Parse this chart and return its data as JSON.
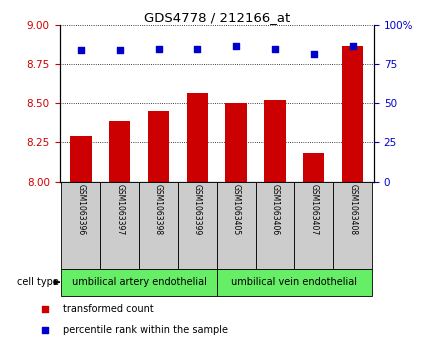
{
  "title": "GDS4778 / 212166_at",
  "samples": [
    "GSM1063396",
    "GSM1063397",
    "GSM1063398",
    "GSM1063399",
    "GSM1063405",
    "GSM1063406",
    "GSM1063407",
    "GSM1063408"
  ],
  "bar_values": [
    8.29,
    8.39,
    8.45,
    8.57,
    8.5,
    8.52,
    8.18,
    8.87
  ],
  "dot_values": [
    84,
    84,
    85,
    85,
    87,
    85,
    82,
    87
  ],
  "ylim_left": [
    8.0,
    9.0
  ],
  "yticks_left": [
    8.0,
    8.25,
    8.5,
    8.75,
    9.0
  ],
  "ylim_right": [
    0,
    100
  ],
  "yticks_right": [
    0,
    25,
    50,
    75,
    100
  ],
  "yticklabels_right": [
    "0",
    "25",
    "50",
    "75",
    "100%"
  ],
  "bar_color": "#cc0000",
  "dot_color": "#0000cc",
  "cell_type_groups": [
    {
      "label": "umbilical artery endothelial",
      "start": 0,
      "end": 4
    },
    {
      "label": "umbilical vein endothelial",
      "start": 4,
      "end": 8
    }
  ],
  "cell_type_color": "#66ee66",
  "legend_bar_label": "transformed count",
  "legend_dot_label": "percentile rank within the sample",
  "cell_type_label": "cell type",
  "bg_color": "#ffffff",
  "tick_label_color_left": "#cc0000",
  "tick_label_color_right": "#0000cc",
  "sample_box_color": "#cccccc",
  "bar_width": 0.55
}
